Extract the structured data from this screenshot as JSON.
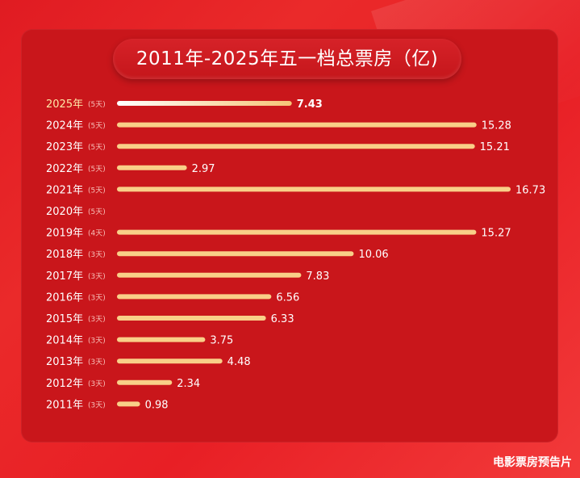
{
  "title": "2011年-2025年五一档总票房（亿)",
  "watermark": "电影票房预告片",
  "chart_data": {
    "type": "bar",
    "orientation": "horizontal",
    "title": "2011年-2025年五一档总票房（亿)",
    "xlim": [
      0,
      16.73
    ],
    "grid": false,
    "categories": [
      "2025年",
      "2024年",
      "2023年",
      "2022年",
      "2021年",
      "2020年",
      "2019年",
      "2018年",
      "2017年",
      "2016年",
      "2015年",
      "2014年",
      "2013年",
      "2012年",
      "2011年"
    ],
    "days": [
      "(5天)",
      "(5天)",
      "(5天)",
      "(5天)",
      "(5天)",
      "(5天)",
      "(4天)",
      "(3天)",
      "(3天)",
      "(3天)",
      "(3天)",
      "(3天)",
      "(3天)",
      "(3天)",
      "(3天)"
    ],
    "values": [
      7.43,
      15.28,
      15.21,
      2.97,
      16.73,
      null,
      15.27,
      10.06,
      7.83,
      6.56,
      6.33,
      3.75,
      4.48,
      2.34,
      0.98
    ],
    "value_labels": [
      "7.43",
      "15.28",
      "15.21",
      "2.97",
      "16.73",
      "",
      "15.27",
      "10.06",
      "7.83",
      "6.56",
      "6.33",
      "3.75",
      "4.48",
      "2.34",
      "0.98"
    ],
    "colors": {
      "bar": "#f9cf88",
      "highlight_start": "#ffffff",
      "highlight_end": "#f6c477",
      "label_text": "#ffffff",
      "highlight_label": "#ffe9a8",
      "day_text": "#f7c0b8"
    }
  }
}
